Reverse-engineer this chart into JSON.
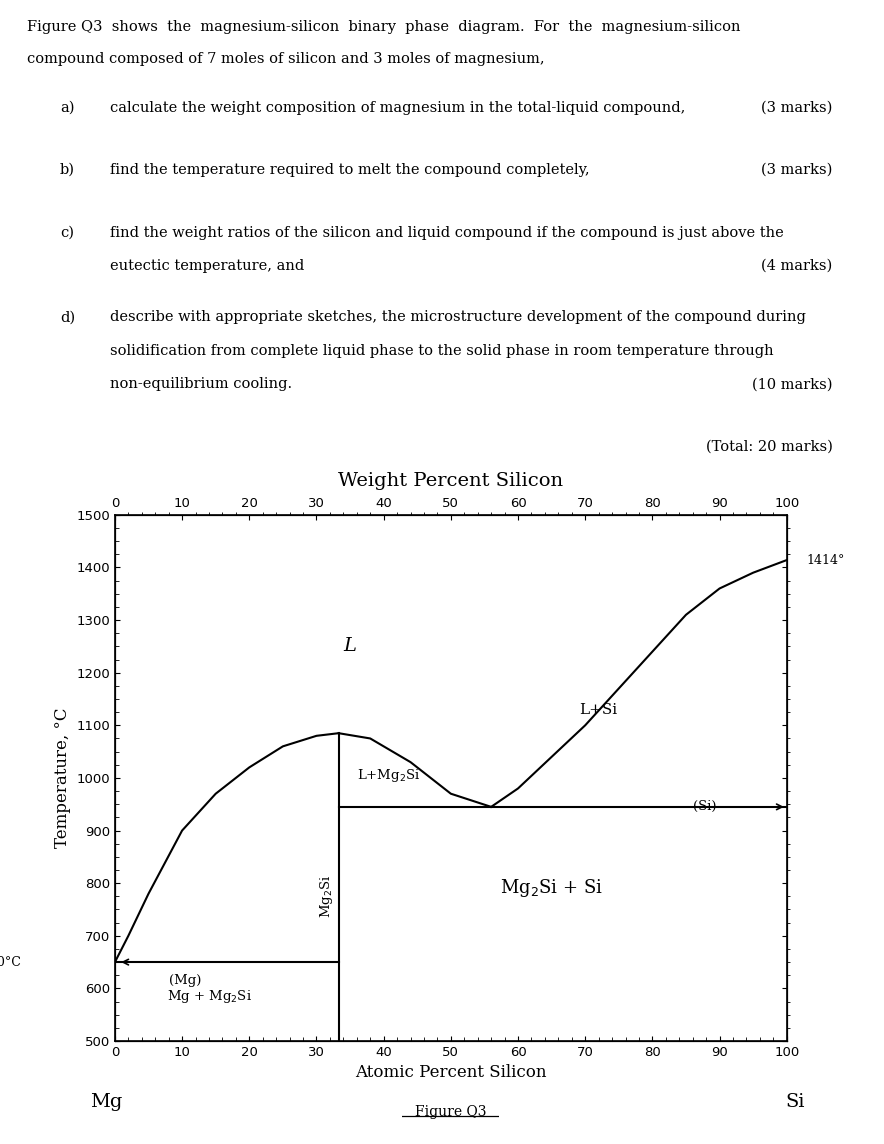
{
  "intro_line1": "Figure Q3  shows  the  magnesium-silicon  binary  phase  diagram.  For  the  magnesium-silicon",
  "intro_line2": "compound composed of 7 moles of silicon and 3 moles of magnesium,",
  "qa_label": "a)",
  "qa_text": "calculate the weight composition of magnesium in the total-liquid compound,",
  "qa_marks": "(3 marks)",
  "qb_label": "b)",
  "qb_text": "find the temperature required to melt the compound completely,",
  "qb_marks": "(3 marks)",
  "qc_label": "c)",
  "qc_text1": "find the weight ratios of the silicon and liquid compound if the compound is just above the",
  "qc_text2": "eutectic temperature, and",
  "qc_marks": "(4 marks)",
  "qd_label": "d)",
  "qd_text1": "describe with appropriate sketches, the microstructure development of the compound during",
  "qd_text2": "solidification from complete liquid phase to the solid phase in room temperature through",
  "qd_text3": "non-equilibrium cooling.",
  "qd_marks": "(10 marks)",
  "total_marks": "(Total: 20 marks)",
  "chart_title": "Weight Percent Silicon",
  "xlabel": "Atomic Percent Silicon",
  "ylabel": "Temperature, °C",
  "figure_label": "Figure Q3",
  "xmin": 0,
  "xmax": 100,
  "ymin": 500,
  "ymax": 1500,
  "xticks": [
    0,
    10,
    20,
    30,
    40,
    50,
    60,
    70,
    80,
    90,
    100
  ],
  "yticks": [
    500,
    600,
    700,
    800,
    900,
    1000,
    1100,
    1200,
    1300,
    1400,
    1500
  ],
  "mg_liquidus_x": [
    0,
    2,
    5,
    10,
    15,
    20,
    25,
    30,
    33.3
  ],
  "mg_liquidus_y": [
    650,
    700,
    780,
    900,
    970,
    1020,
    1060,
    1080,
    1085
  ],
  "eutectic_left_y": 650,
  "Mg2Si_x": 33.3,
  "Mg2Si_top_y": 1085,
  "eutectic_temp": 945,
  "eutectic_right_x": 56,
  "dome_right_x": [
    33.3,
    38,
    44,
    50,
    56
  ],
  "dome_right_y": [
    1085,
    1075,
    1030,
    970,
    945
  ],
  "si_liquidus_x": [
    56,
    60,
    65,
    70,
    75,
    80,
    85,
    90,
    95,
    100
  ],
  "si_liquidus_y": [
    945,
    980,
    1040,
    1100,
    1170,
    1240,
    1310,
    1360,
    1390,
    1414
  ],
  "si_melting": 1414,
  "background_color": "#ffffff",
  "line_color": "#000000"
}
